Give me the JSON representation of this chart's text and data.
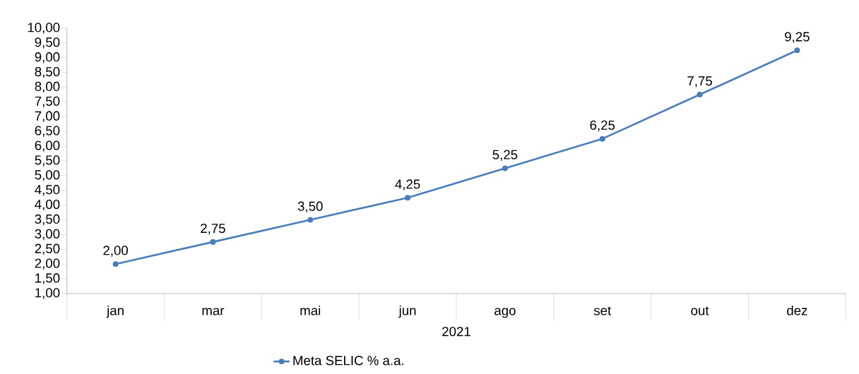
{
  "chart_data": {
    "type": "line",
    "xlabel": "2021",
    "categories": [
      "jan",
      "mar",
      "mai",
      "jun",
      "ago",
      "set",
      "out",
      "dez"
    ],
    "series": [
      {
        "name": "Meta SELIC % a.a.",
        "color": "#4a7ebb",
        "values": [
          2.0,
          2.75,
          3.5,
          4.25,
          5.25,
          6.25,
          7.75,
          9.25
        ],
        "value_labels": [
          "2,00",
          "2,75",
          "3,50",
          "4,25",
          "5,25",
          "6,25",
          "7,75",
          "9,25"
        ]
      }
    ],
    "ylim": [
      1,
      10
    ],
    "yticks": [
      {
        "value": 1,
        "label": "1,00"
      },
      {
        "value": 1.5,
        "label": "1,50"
      },
      {
        "value": 2,
        "label": "2,00"
      },
      {
        "value": 2.5,
        "label": "2,50"
      },
      {
        "value": 3,
        "label": "3,00"
      },
      {
        "value": 3.5,
        "label": "3,50"
      },
      {
        "value": 4,
        "label": "4,00"
      },
      {
        "value": 4.5,
        "label": "4,50"
      },
      {
        "value": 5,
        "label": "5,00"
      },
      {
        "value": 5.5,
        "label": "5,50"
      },
      {
        "value": 6,
        "label": "6,00"
      },
      {
        "value": 6.5,
        "label": "6,50"
      },
      {
        "value": 7,
        "label": "7,00"
      },
      {
        "value": 7.5,
        "label": "7,50"
      },
      {
        "value": 8,
        "label": "8,00"
      },
      {
        "value": 8.5,
        "label": "8,50"
      },
      {
        "value": 9,
        "label": "9,00"
      },
      {
        "value": 9.5,
        "label": "9,50"
      },
      {
        "value": 10,
        "label": "10,00"
      }
    ],
    "legend": "bottom",
    "marker": "circle",
    "line_style": "solid"
  }
}
